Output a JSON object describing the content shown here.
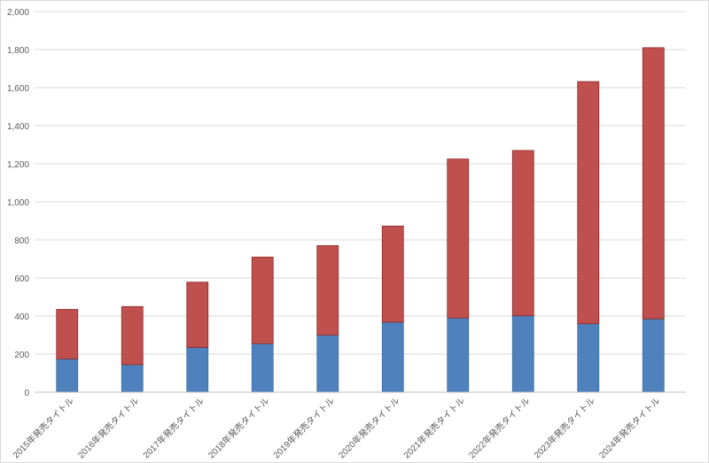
{
  "chart_data": {
    "type": "bar",
    "stacked": true,
    "categories": [
      "2015年発売タイトル",
      "2016年発売タイトル",
      "2017年発売タイトル",
      "2018年発売タイトル",
      "2019年発売タイトル",
      "2020年発売タイトル",
      "2021年発売タイトル",
      "2022年発売タイトル",
      "2023年発売タイトル",
      "2024年発売タイトル"
    ],
    "series": [
      {
        "values": [
          175,
          145,
          235,
          255,
          300,
          368,
          390,
          402,
          360,
          385
        ],
        "color": "#4f81bd"
      },
      {
        "values": [
          260,
          305,
          343,
          455,
          470,
          505,
          835,
          868,
          1272,
          1425
        ],
        "color": "#c0504d"
      }
    ],
    "ylim": [
      0,
      2000
    ],
    "yticks": [
      0,
      200,
      400,
      600,
      800,
      1000,
      1200,
      1400,
      1600,
      1800,
      2000
    ],
    "ytick_labels": [
      "0",
      "200",
      "400",
      "600",
      "800",
      "1,000",
      "1,200",
      "1,400",
      "1,600",
      "1,800",
      "2,000"
    ],
    "grid": true,
    "legend": "none"
  }
}
